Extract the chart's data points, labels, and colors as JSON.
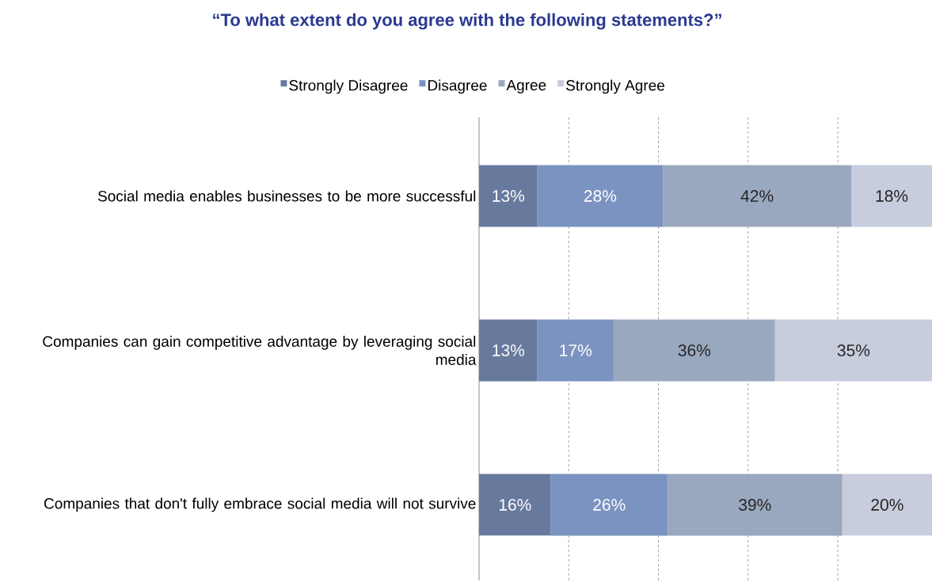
{
  "chart_data": {
    "type": "bar",
    "orientation": "horizontal",
    "stacked": true,
    "title": "“To what extent do you agree with the following statements?”",
    "categories": [
      "Social media enables businesses to be more successful",
      "Companies can gain competitive advantage by leveraging social media",
      "Companies that don't fully embrace social media will not survive"
    ],
    "series": [
      {
        "name": "Strongly Disagree",
        "color": "#68799e",
        "values": [
          13,
          13,
          16
        ],
        "value_labels": [
          "13%",
          "13%",
          "16%"
        ]
      },
      {
        "name": "Disagree",
        "color": "#7b93c0",
        "values": [
          28,
          17,
          26
        ],
        "value_labels": [
          "28%",
          "17%",
          "26%"
        ]
      },
      {
        "name": "Agree",
        "color": "#9aa8bf",
        "values": [
          42,
          36,
          39
        ],
        "value_labels": [
          "42%",
          "36%",
          "39%"
        ]
      },
      {
        "name": "Strongly Agree",
        "color": "#c8cddd",
        "values": [
          18,
          35,
          20
        ],
        "value_labels": [
          "18%",
          "35%",
          "20%"
        ]
      }
    ],
    "xlim": [
      0,
      101
    ],
    "xticks": [
      {
        "value": 20,
        "label": null
      },
      {
        "value": 40,
        "label": null
      },
      {
        "value": 60,
        "label": null
      },
      {
        "value": 80,
        "label": null
      }
    ],
    "grid": "x",
    "legend": "top",
    "tick_labels": "y"
  }
}
